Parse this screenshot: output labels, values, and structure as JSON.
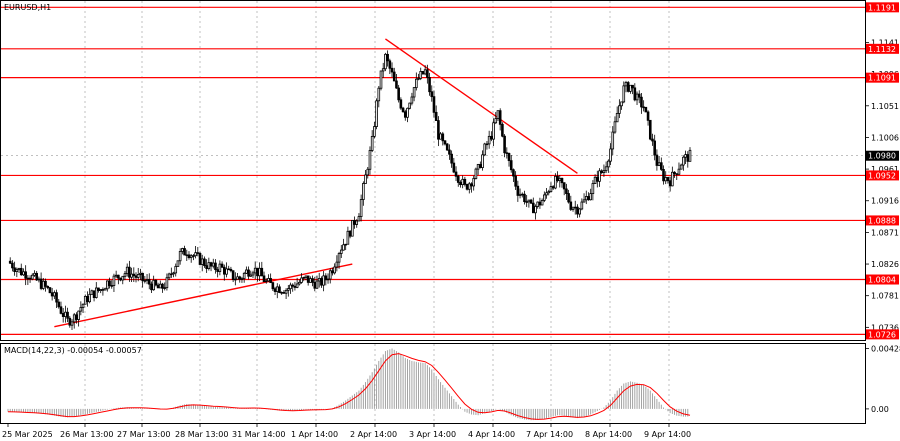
{
  "chart_data": [
    {
      "type": "candlestick",
      "title": "EURUSD,H1",
      "ylim": [
        1.0718,
        1.12
      ],
      "y_ticks": [
        "1.1141",
        "1.1096",
        "1.1051",
        "1.1006",
        "1.0961",
        "1.0916",
        "1.0871",
        "1.0826",
        "1.0781",
        "1.0736"
      ],
      "x_ticks": [
        "25 Mar 2025",
        "26 Mar 13:00",
        "27 Mar 13:00",
        "28 Mar 13:00",
        "31 Mar 14:00",
        "1 Apr 14:00",
        "2 Apr 14:00",
        "3 Apr 14:00",
        "4 Apr 14:00",
        "7 Apr 14:00",
        "8 Apr 14:00",
        "9 Apr 14:00"
      ],
      "levels": [
        {
          "label": "1.1191",
          "value": 1.1191
        },
        {
          "label": "1.1132",
          "value": 1.1132
        },
        {
          "label": "1.1091",
          "value": 1.1091
        },
        {
          "label": "1.0952",
          "value": 1.0952
        },
        {
          "label": "1.0888",
          "value": 1.0888
        },
        {
          "label": "1.0804",
          "value": 1.0804
        },
        {
          "label": "1.0726",
          "value": 1.0726
        }
      ],
      "current_price": {
        "label": "1.0980",
        "value": 1.098
      },
      "color_levels": "#ff0000",
      "trendlines": [
        {
          "from": {
            "t": 7.0,
            "v": 1.0737
          },
          "to": {
            "t": 52.0,
            "v": 1.0826
          }
        },
        {
          "from": {
            "t": 57.0,
            "v": 1.1146
          },
          "to": {
            "t": 86.0,
            "v": 1.0955
          }
        }
      ],
      "close": [
        1.083,
        1.0822,
        1.0815,
        1.0812,
        1.0805,
        1.0798,
        1.079,
        1.0778,
        1.076,
        1.0745,
        1.075,
        1.0765,
        1.0778,
        1.0785,
        1.079,
        1.08,
        1.0805,
        1.081,
        1.0815,
        1.081,
        1.0805,
        1.08,
        1.0795,
        1.079,
        1.08,
        1.082,
        1.084,
        1.0845,
        1.0838,
        1.0832,
        1.0825,
        1.082,
        1.0822,
        1.0815,
        1.0808,
        1.0805,
        1.0815,
        1.082,
        1.0812,
        1.08,
        1.0795,
        1.0792,
        1.079,
        1.0795,
        1.08,
        1.0805,
        1.08,
        1.0798,
        1.0805,
        1.082,
        1.0845,
        1.086,
        1.088,
        1.09,
        1.095,
        1.1,
        1.108,
        1.112,
        1.1095,
        1.106,
        1.104,
        1.107,
        1.109,
        1.11,
        1.106,
        1.101,
        1.099,
        1.097,
        1.095,
        1.0935,
        1.0945,
        1.096,
        1.099,
        1.101,
        1.104,
        1.099,
        1.096,
        1.093,
        1.092,
        1.0905,
        1.091,
        1.092,
        1.094,
        1.0945,
        1.093,
        1.091,
        1.0905,
        1.0915,
        1.093,
        1.095,
        1.096,
        1.099,
        1.104,
        1.1075,
        1.108,
        1.106,
        1.105,
        1.101,
        1.097,
        1.095,
        1.0945,
        1.096,
        1.0975,
        1.098
      ],
      "macd": {
        "label": "MACD(14,22,3) -0.00054 -0.00057",
        "ylim": [
          -0.001,
          0.0046
        ],
        "y_ticks": [
          "0.00428",
          "0.00"
        ],
        "histogram": [
          -0.0002,
          -0.00022,
          -0.00025,
          -0.00028,
          -0.0003,
          -0.00034,
          -0.0004,
          -0.00048,
          -0.00056,
          -0.0006,
          -0.00055,
          -0.00045,
          -0.00035,
          -0.00025,
          -0.00015,
          -5e-05,
          5e-05,
          0.0001,
          0.00012,
          0.0001,
          8e-05,
          4e-05,
          0.0,
          -5e-05,
          -2e-05,
          0.0001,
          0.00025,
          0.00035,
          0.00032,
          0.00026,
          0.0002,
          0.00015,
          0.00014,
          0.0001,
          5e-05,
          2e-05,
          5e-05,
          8e-05,
          5e-05,
          -2e-05,
          -8e-05,
          -0.00012,
          -0.00015,
          -0.00014,
          -0.0001,
          -6e-05,
          -6e-05,
          -6e-05,
          -3e-05,
          5e-05,
          0.0003,
          0.0006,
          0.00095,
          0.0013,
          0.0019,
          0.0026,
          0.0034,
          0.0041,
          0.00428,
          0.004,
          0.0036,
          0.0034,
          0.0033,
          0.00325,
          0.0028,
          0.0021,
          0.0015,
          0.0009,
          0.0003,
          -0.0002,
          -0.0004,
          -0.00045,
          -0.0003,
          -0.00015,
          0.0,
          -0.0002,
          -0.00045,
          -0.00065,
          -0.00075,
          -0.0008,
          -0.00078,
          -0.0007,
          -0.00058,
          -0.00045,
          -0.00048,
          -0.0006,
          -0.00065,
          -0.00055,
          -0.0004,
          -0.00015,
          0.0001,
          0.0006,
          0.0013,
          0.0018,
          0.00195,
          0.00185,
          0.0017,
          0.0013,
          0.0007,
          0.0001,
          -0.0003,
          -0.00048,
          -0.00055,
          -0.00054
        ]
      }
    }
  ]
}
